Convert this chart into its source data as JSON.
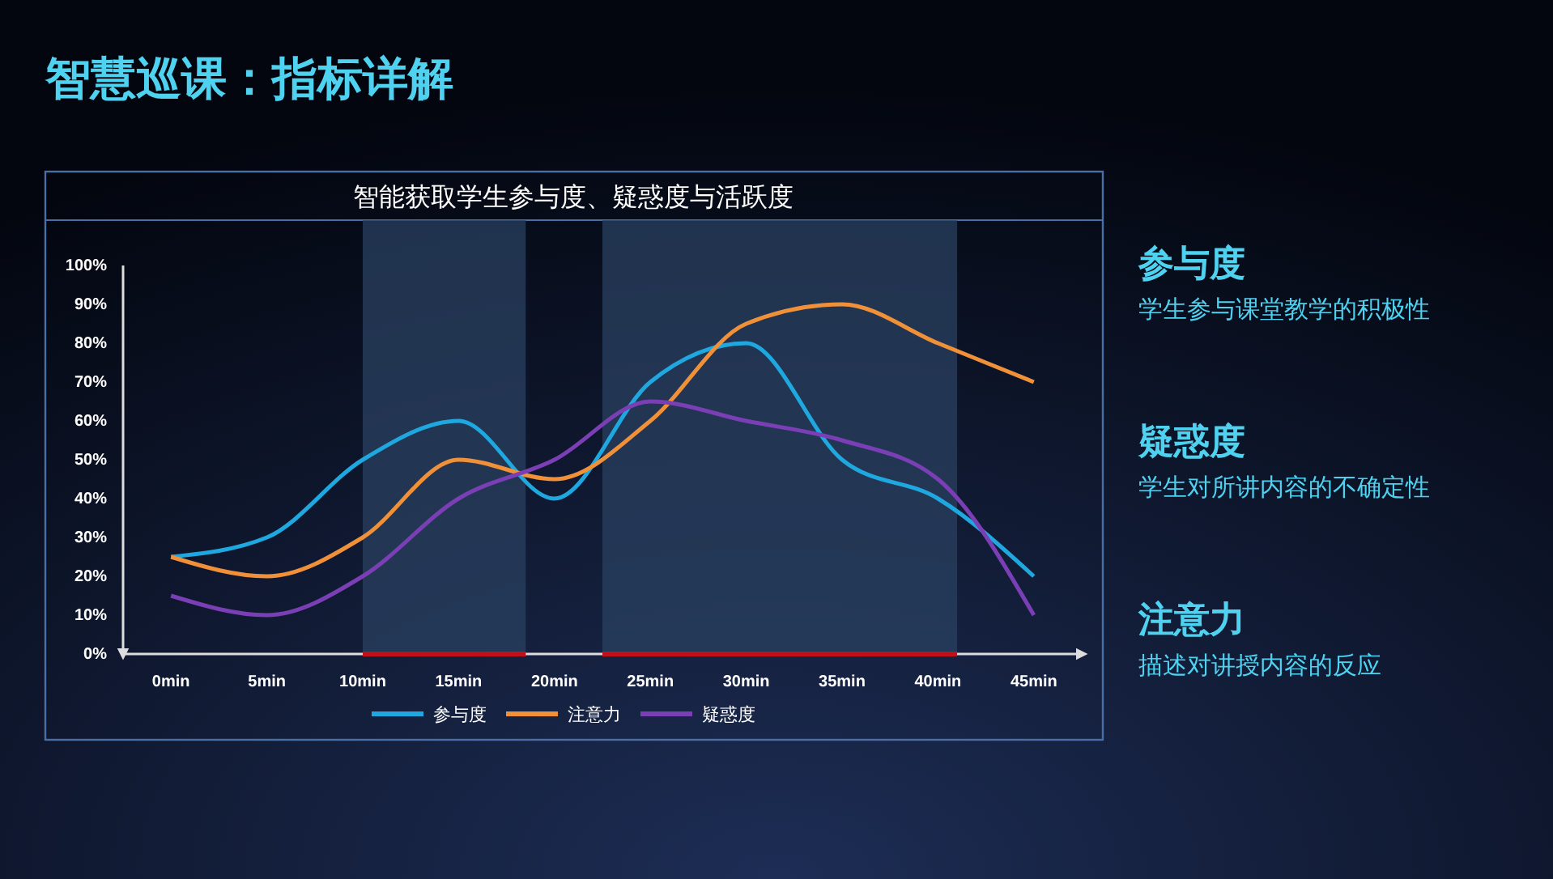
{
  "chart_data": {
    "type": "line",
    "title": "智慧巡课：指标详解",
    "subtitle": "智能获取学生参与度、疑惑度与活跃度",
    "x": [
      0,
      5,
      10,
      15,
      20,
      25,
      30,
      35,
      40,
      45
    ],
    "xlim": [
      -2.5,
      47.5
    ],
    "xticks": [
      {
        "value": 0,
        "label": "0min"
      },
      {
        "value": 5,
        "label": "5min"
      },
      {
        "value": 10,
        "label": "10min"
      },
      {
        "value": 15,
        "label": "15min"
      },
      {
        "value": 20,
        "label": "20min"
      },
      {
        "value": 25,
        "label": "25min"
      },
      {
        "value": 30,
        "label": "30min"
      },
      {
        "value": 35,
        "label": "35min"
      },
      {
        "value": 40,
        "label": "40min"
      },
      {
        "value": 45,
        "label": "45min"
      }
    ],
    "ylim": [
      0,
      100
    ],
    "yticks": [
      {
        "value": 0,
        "label": "0%"
      },
      {
        "value": 10,
        "label": "10%"
      },
      {
        "value": 20,
        "label": "20%"
      },
      {
        "value": 30,
        "label": "30%"
      },
      {
        "value": 40,
        "label": "40%"
      },
      {
        "value": 50,
        "label": "50%"
      },
      {
        "value": 60,
        "label": "60%"
      },
      {
        "value": 70,
        "label": "70%"
      },
      {
        "value": 80,
        "label": "80%"
      },
      {
        "value": 90,
        "label": "90%"
      },
      {
        "value": 100,
        "label": "100%"
      }
    ],
    "series": [
      {
        "name": "参与度",
        "color": "#1fa8e0",
        "values": [
          25,
          30,
          50,
          60,
          40,
          70,
          80,
          50,
          40,
          20
        ]
      },
      {
        "name": "注意力",
        "color": "#f0913a",
        "values": [
          25,
          20,
          30,
          50,
          45,
          60,
          85,
          90,
          80,
          70
        ]
      },
      {
        "name": "疑惑度",
        "color": "#7b3fb5",
        "values": [
          15,
          10,
          20,
          40,
          50,
          65,
          60,
          55,
          45,
          10
        ]
      }
    ],
    "bands": [
      {
        "axis": "x",
        "from": 10,
        "to": 18.5,
        "color": "#2a4060"
      },
      {
        "axis": "x",
        "from": 22.5,
        "to": 41,
        "color": "#2a4060"
      }
    ],
    "legend": "bottom",
    "grid": false,
    "marker": "none",
    "line_style": "solid",
    "annotations": [
      "参与度",
      "学生参与课堂教学的积极性",
      "疑惑度",
      "学生对所讲内容的不确定性",
      "注意力",
      "描述对讲授内容的反应"
    ]
  }
}
